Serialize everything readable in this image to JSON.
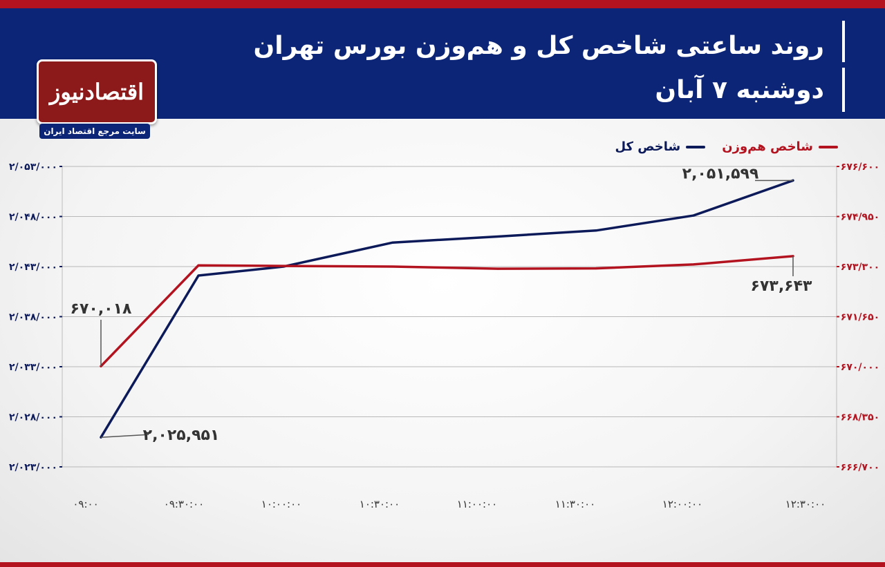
{
  "header": {
    "title": "روند ساعتی شاخص کل و هم‌وزن بورس تهران",
    "subtitle": "دوشنبه ۷ آبان"
  },
  "logo": {
    "name": "اقتصادنیوز",
    "tagline": "سایت مرجع اقتصاد ایران"
  },
  "colors": {
    "header_bg": "#0c2577",
    "accent_red": "#b3121f",
    "series_total": "#0c1a5a",
    "series_equal": "#b3121f"
  },
  "chart_data": {
    "type": "line",
    "title": "روند ساعتی شاخص کل و هم‌وزن بورس تهران",
    "x": [
      "۰۹:۰۰",
      "۰۹:۳۰:۰۰",
      "۱۰:۰۰:۰۰",
      "۱۰:۳۰:۰۰",
      "۱۱:۰۰:۰۰",
      "۱۱:۳۰:۰۰",
      "۱۲:۰۰:۰۰",
      "۱۲:۳۰:۰۰"
    ],
    "legend_position": "top-right",
    "grid": true,
    "y_left": {
      "ticks": [
        "۲/۰۵۳/۰۰۰",
        "۲/۰۴۸/۰۰۰",
        "۲/۰۴۳/۰۰۰",
        "۲/۰۳۸/۰۰۰",
        "۲/۰۳۳/۰۰۰",
        "۲/۰۲۸/۰۰۰",
        "۲/۰۲۳/۰۰۰"
      ],
      "range": [
        2023000,
        2053000
      ]
    },
    "y_right": {
      "ticks": [
        "۶۷۶/۶۰۰",
        "۶۷۴/۹۵۰",
        "۶۷۳/۳۰۰",
        "۶۷۱/۶۵۰",
        "۶۷۰/۰۰۰",
        "۶۶۸/۳۵۰",
        "۶۶۶/۷۰۰"
      ],
      "range": [
        666700,
        676600
      ]
    },
    "series": [
      {
        "name": "شاخص کل",
        "axis": "left",
        "color": "#0c1a5a",
        "points": [
          [
            0,
            2025951
          ],
          [
            1,
            2042100
          ],
          [
            2,
            2043000
          ],
          [
            3,
            2045400
          ],
          [
            4,
            2046000
          ],
          [
            5,
            2046600
          ],
          [
            6,
            2048100
          ],
          [
            7,
            2051599
          ]
        ],
        "labels": [
          {
            "index": 0,
            "text": "۲,۰۲۵,۹۵۱"
          },
          {
            "index": 7,
            "text": "۲,۰۵۱,۵۹۹"
          }
        ]
      },
      {
        "name": "شاخص هم‌وزن",
        "axis": "right",
        "color": "#b3121f",
        "points": [
          [
            0,
            670018
          ],
          [
            1,
            673340
          ],
          [
            2,
            673320
          ],
          [
            3,
            673300
          ],
          [
            4,
            673230
          ],
          [
            5,
            673240
          ],
          [
            6,
            673370
          ],
          [
            7,
            673643
          ]
        ],
        "labels": [
          {
            "index": 0,
            "text": "۶۷۰,۰۱۸"
          },
          {
            "index": 7,
            "text": "۶۷۳,۶۴۳"
          }
        ]
      }
    ]
  }
}
